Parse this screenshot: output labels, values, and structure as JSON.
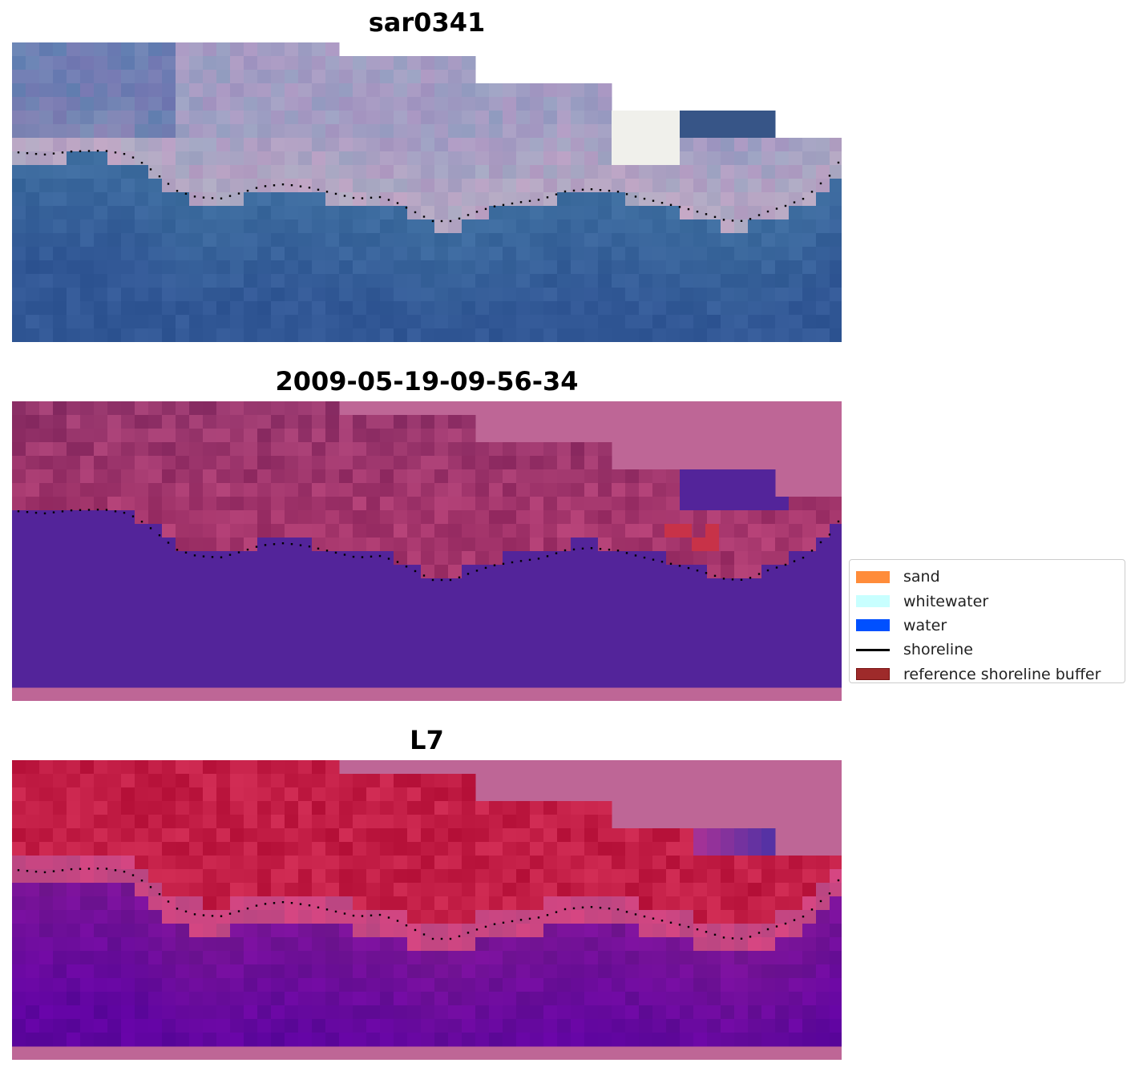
{
  "panels": [
    {
      "id": "rgb",
      "title": "sar0341"
    },
    {
      "id": "classified",
      "title": "2009-05-19-09-56-34"
    },
    {
      "id": "index",
      "title": "L7"
    }
  ],
  "legend": [
    {
      "label": "sand",
      "type": "patch",
      "color": "#ff8c3a"
    },
    {
      "label": "whitewater",
      "type": "patch",
      "color": "#c8ffff"
    },
    {
      "label": "water",
      "type": "patch",
      "color": "#0050ff"
    },
    {
      "label": "shoreline",
      "type": "line",
      "color": "#000000"
    },
    {
      "label": "reference shoreline buffer",
      "type": "patch",
      "color": "#9e2a2a",
      "edge": "#7a1414"
    }
  ],
  "colors": {
    "nodata": "#be6696",
    "water_class": "#53249a",
    "buffer_overlap": "#c83248"
  }
}
